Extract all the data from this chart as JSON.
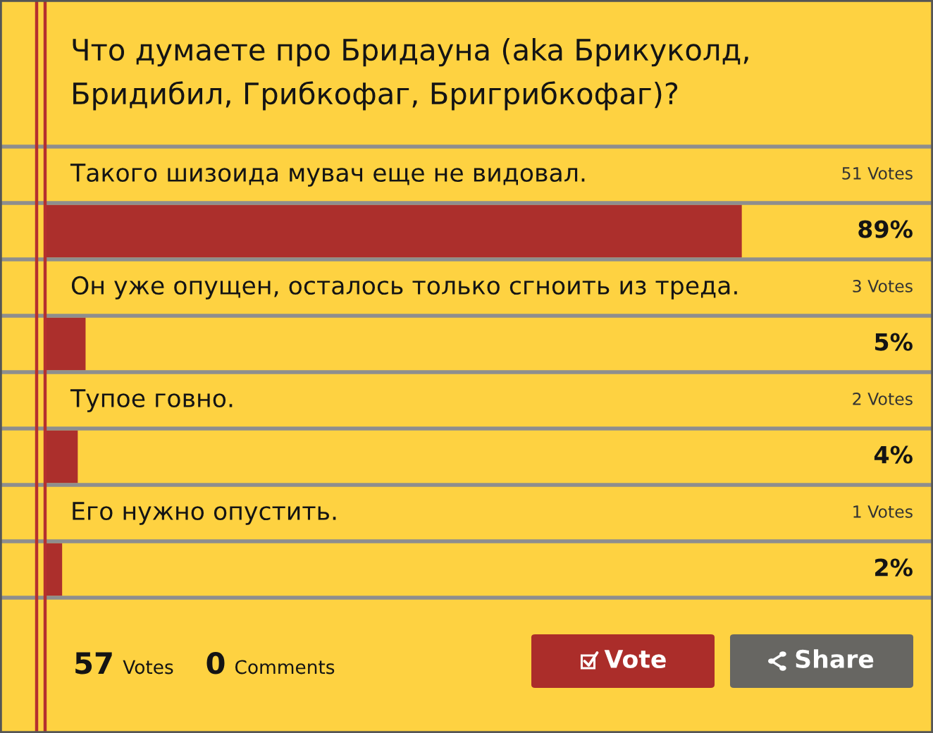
{
  "chart_data": {
    "type": "bar",
    "orientation": "horizontal",
    "title": "Что думаете про Бридауна (aka Брикуколд, Бридибил, Грибкофаг, Бригрибкофаг)?",
    "categories": [
      "Такого шизоида мувач еще не видовал.",
      "Он уже опущен, осталось только сгноить из треда.",
      "Тупое говно.",
      "Его нужно опустить."
    ],
    "values": [
      89,
      5,
      4,
      2
    ],
    "value_labels": [
      "89%",
      "5%",
      "4%",
      "2%"
    ],
    "color": "#ac2f2c",
    "tick_labels": false,
    "annotations": [
      "51 Votes",
      "3 Votes",
      "2 Votes",
      "1 Votes",
      "57 Votes",
      "0 Comments",
      "Vote",
      "Share"
    ]
  }
}
